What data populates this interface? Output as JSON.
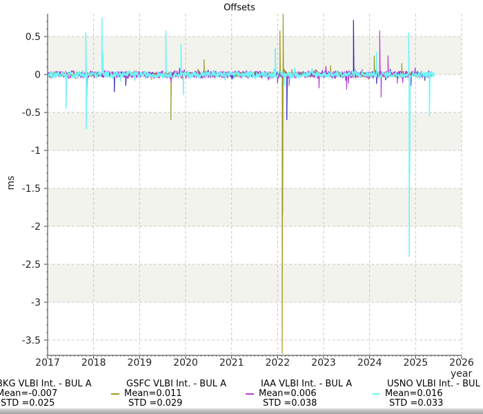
{
  "chart_data": {
    "type": "line",
    "title": "Offsets",
    "xlabel": "year",
    "ylabel": "ms",
    "xlim": [
      2017,
      2026
    ],
    "ylim": [
      -3.7,
      0.8
    ],
    "xticks": [
      "2017",
      "2018",
      "2019",
      "2020",
      "2021",
      "2022",
      "2023",
      "2024",
      "2025",
      "2026"
    ],
    "yticks": [
      "0.5",
      "0",
      "-0.5",
      "-1",
      "-1.5",
      "-2",
      "-2.5",
      "-3",
      "-3.5"
    ],
    "grid": true,
    "legend_position": "bottom",
    "series": [
      {
        "name": "BKG VLBI Int. - BUL A",
        "color": "#2b1fb8",
        "mean_label": "Mean=-0.007",
        "std_label": "STD =0.025",
        "noise": 0.03,
        "spikes": [
          [
            2017.85,
            -0.28
          ],
          [
            2018.45,
            -0.23
          ],
          [
            2018.7,
            -0.15
          ],
          [
            2021.95,
            0.35
          ],
          [
            2022.2,
            -0.6
          ],
          [
            2023.65,
            0.72
          ],
          [
            2024.15,
            -0.12
          ],
          [
            2025.2,
            -0.08
          ]
        ]
      },
      {
        "name": "GSFC VLBI Int. - BUL A",
        "color": "#9a9a1e",
        "mean_label": "Mean=0.011",
        "std_label": "STD =0.029",
        "noise": 0.03,
        "spikes": [
          [
            2019.68,
            -0.6
          ],
          [
            2020.4,
            0.2
          ],
          [
            2022.05,
            0.58
          ],
          [
            2022.1,
            -3.68
          ],
          [
            2022.12,
            0.8
          ],
          [
            2022.11,
            -1.85
          ],
          [
            2023.15,
            0.12
          ],
          [
            2024.1,
            0.25
          ],
          [
            2024.7,
            0.15
          ]
        ]
      },
      {
        "name": "IAA VLBI Int. - BUL A",
        "color": "#b63ad6",
        "mean_label": "Mean=0.006",
        "std_label": "STD =0.038",
        "noise": 0.05,
        "spikes": [
          [
            2022.25,
            -0.15
          ],
          [
            2022.9,
            -0.18
          ],
          [
            2023.5,
            -0.2
          ],
          [
            2024.22,
            0.58
          ],
          [
            2024.25,
            -0.3
          ],
          [
            2024.4,
            0.25
          ],
          [
            2024.6,
            -0.12
          ],
          [
            2024.9,
            -0.15
          ]
        ]
      },
      {
        "name": "USNO VLBI Int. - BUL A",
        "color": "#6ff7f7",
        "mean_label": "Mean=0.016",
        "std_label": "STD =0.033",
        "noise": 0.04,
        "spikes": [
          [
            2017.4,
            -0.45
          ],
          [
            2017.83,
            0.56
          ],
          [
            2017.84,
            -0.72
          ],
          [
            2018.18,
            0.75
          ],
          [
            2018.2,
            0.3
          ],
          [
            2019.57,
            0.58
          ],
          [
            2019.9,
            0.4
          ],
          [
            2019.95,
            -0.27
          ],
          [
            2021.95,
            0.35
          ],
          [
            2022.15,
            -0.15
          ],
          [
            2024.15,
            0.3
          ],
          [
            2024.85,
            0.55
          ],
          [
            2024.86,
            -2.4
          ],
          [
            2024.87,
            -1.3
          ],
          [
            2025.3,
            -0.55
          ]
        ]
      }
    ]
  }
}
